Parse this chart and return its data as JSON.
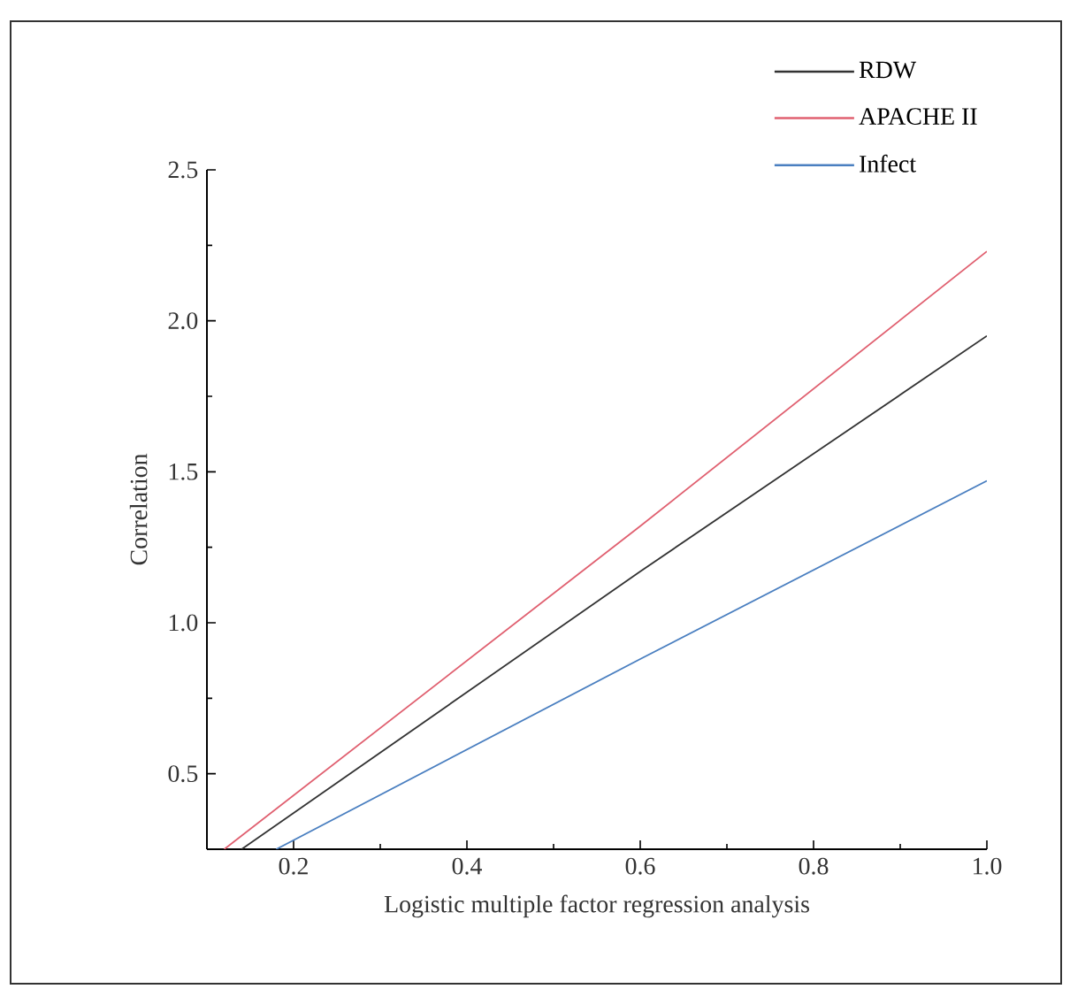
{
  "chart_data": {
    "type": "line",
    "xlabel": "Logistic multiple factor regression analysis",
    "ylabel": "Correlation",
    "xlim": [
      0.1,
      1.0
    ],
    "xticks": [
      0.2,
      0.4,
      0.6,
      0.8,
      {
        "value": 1,
        "label": "1.0"
      }
    ],
    "ylim": [
      0.25,
      2.5
    ],
    "yticks": [
      0.5,
      {
        "value": 1,
        "label": "1.0"
      },
      1.5,
      {
        "value": 2,
        "label": "2.0"
      },
      2.5
    ],
    "legend": "top right",
    "grid": false,
    "marker": "none",
    "line_style": "solid",
    "series": [
      {
        "name": "RDW",
        "color": "#333333",
        "x": [
          0.14,
          0.6,
          1.0
        ],
        "values": [
          0.25,
          1.17,
          1.95
        ]
      },
      {
        "name": "APACHE II",
        "color": "#e06070",
        "x": [
          0.12,
          0.6,
          1.0
        ],
        "values": [
          0.25,
          1.32,
          2.23
        ]
      },
      {
        "name": "Infect",
        "color": "#4a7fc0",
        "x": [
          0.18,
          0.6,
          1.0
        ],
        "values": [
          0.25,
          0.88,
          1.47
        ]
      }
    ]
  }
}
